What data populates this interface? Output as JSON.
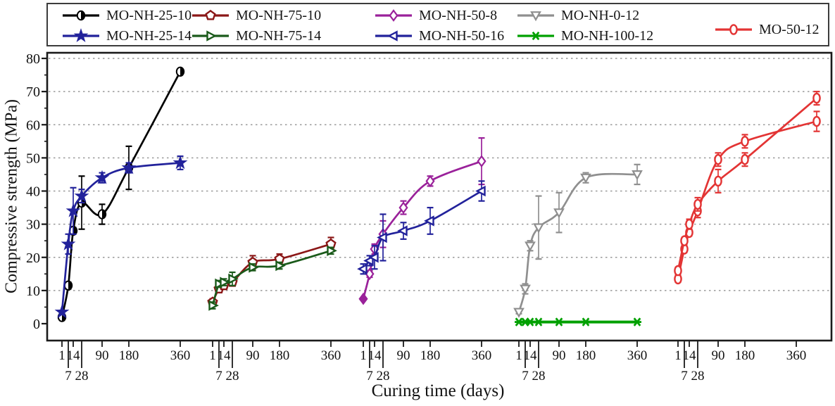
{
  "figure": {
    "y_axis": {
      "label": "Compressive strength (MPa)",
      "min": 0,
      "max": 80,
      "step": 10,
      "tick_labels": [
        "0",
        "10",
        "20",
        "30",
        "40",
        "50",
        "60",
        "70",
        "80"
      ]
    },
    "x_axis": {
      "label": "Curing time (days)",
      "tick_days_per_group": [
        1,
        7,
        14,
        28,
        90,
        180,
        360
      ],
      "tick_row1": [
        "1",
        "14",
        "90",
        "180",
        "360"
      ],
      "tick_row2": [
        "7",
        "28"
      ],
      "group_count": 5
    },
    "colors": {
      "background": "#ffffff",
      "axis": "#1a1a1a",
      "grid": "#999999",
      "legend_border": "#3c3c3c"
    }
  },
  "chart_data": {
    "type": "line",
    "title": "",
    "xlabel": "Curing time (days)",
    "ylabel": "Compressive strength (MPa)",
    "ylim": [
      0,
      80
    ],
    "grid": "dotted horizontal lines every 10 MPa",
    "legend_position": "top box, 2 rows",
    "x_layout": "5 repeated day scales (1-360 days), one group per mix family",
    "series": [
      {
        "name": "MO-NH-25-10",
        "color": "#000000",
        "marker": "half-circle",
        "group": 0,
        "legend": true,
        "days": [
          1,
          7,
          14,
          28,
          90,
          180,
          360
        ],
        "values": [
          2,
          11.5,
          28,
          36.5,
          33,
          47,
          76
        ],
        "errors": [
          0.5,
          1,
          1,
          8,
          3,
          6.5,
          0
        ]
      },
      {
        "name": "MO-NH-75-10",
        "color": "#8B1717",
        "marker": "pentagon",
        "group": 1,
        "legend": true,
        "days": [
          1,
          7,
          14,
          28,
          90,
          180,
          360
        ],
        "values": [
          6.5,
          10.5,
          11.5,
          12.5,
          18.5,
          19.5,
          24
        ],
        "errors": [
          1,
          1,
          1,
          1,
          2,
          1.5,
          2
        ]
      },
      {
        "name": "MO-NH-50-8",
        "color": "#9A219A",
        "marker": "diamond",
        "group": 2,
        "legend": true,
        "fill_first": true,
        "days": [
          1,
          7,
          14,
          28,
          90,
          180,
          360
        ],
        "values": [
          7.5,
          15,
          22.5,
          27,
          35,
          43,
          49
        ],
        "errors": [
          0,
          1,
          1.5,
          4,
          2,
          1.5,
          7
        ]
      },
      {
        "name": "MO-NH-0-12",
        "color": "#8F8F8F",
        "marker": "triangle-down",
        "group": 3,
        "legend": true,
        "days": [
          1,
          7,
          14,
          28,
          90,
          180,
          360
        ],
        "values": [
          3.5,
          10.5,
          23.5,
          29,
          33.5,
          44,
          45
        ],
        "errors": [
          0.5,
          1.5,
          1.5,
          9.5,
          6,
          1.5,
          3
        ]
      },
      {
        "name": "MO-NH-25-14",
        "color": "#22229B",
        "marker": "star",
        "group": 0,
        "legend": true,
        "days": [
          1,
          7,
          14,
          28,
          90,
          180,
          360
        ],
        "values": [
          3.5,
          24,
          34,
          38.5,
          44,
          47,
          48.5
        ],
        "errors": [
          0.5,
          3,
          7,
          2,
          1.5,
          1.5,
          2
        ]
      },
      {
        "name": "MO-NH-75-14",
        "color": "#1A5A1A",
        "marker": "triangle-right",
        "group": 1,
        "legend": true,
        "days": [
          1,
          7,
          14,
          28,
          90,
          180,
          360
        ],
        "values": [
          5.5,
          12,
          12.5,
          13.5,
          17,
          17.5,
          22
        ],
        "errors": [
          1,
          1,
          1,
          2,
          1,
          1,
          1
        ]
      },
      {
        "name": "MO-NH-50-16",
        "color": "#22229B",
        "marker": "triangle-left",
        "group": 2,
        "legend": true,
        "days": [
          1,
          7,
          14,
          28,
          90,
          180,
          360
        ],
        "values": [
          16.5,
          19,
          20,
          26,
          28,
          31,
          40
        ],
        "errors": [
          1.5,
          1.5,
          3.5,
          7,
          2.5,
          4,
          3
        ]
      },
      {
        "name": "MO-NH-100-12",
        "color": "#00A000",
        "marker": "asterisk",
        "group": 3,
        "legend": true,
        "line_width": 4,
        "days": [
          1,
          7,
          14,
          28,
          90,
          180,
          360
        ],
        "values": [
          0.5,
          0.5,
          0.5,
          0.5,
          0.5,
          0.5,
          0.5
        ],
        "errors": [
          0,
          0,
          0,
          0,
          0,
          0,
          0
        ]
      },
      {
        "name": "MO-50-12",
        "color": "#E33434",
        "marker": "ellipse",
        "group": 4,
        "legend": true,
        "days": [
          1,
          7,
          14,
          28,
          90,
          180,
          430
        ],
        "values": [
          13.5,
          22.5,
          27.5,
          34,
          49.5,
          55,
          61
        ],
        "errors": [
          1,
          1,
          1,
          2,
          2,
          2,
          3
        ]
      },
      {
        "name": "MO-50-12",
        "color": "#E33434",
        "marker": "ellipse",
        "group": 4,
        "legend": false,
        "days": [
          1,
          7,
          14,
          28,
          90,
          180,
          430
        ],
        "values": [
          16,
          25,
          30,
          36,
          43,
          49.5,
          68
        ],
        "errors": [
          1,
          1,
          1.5,
          2,
          3.5,
          2,
          2
        ]
      }
    ]
  }
}
